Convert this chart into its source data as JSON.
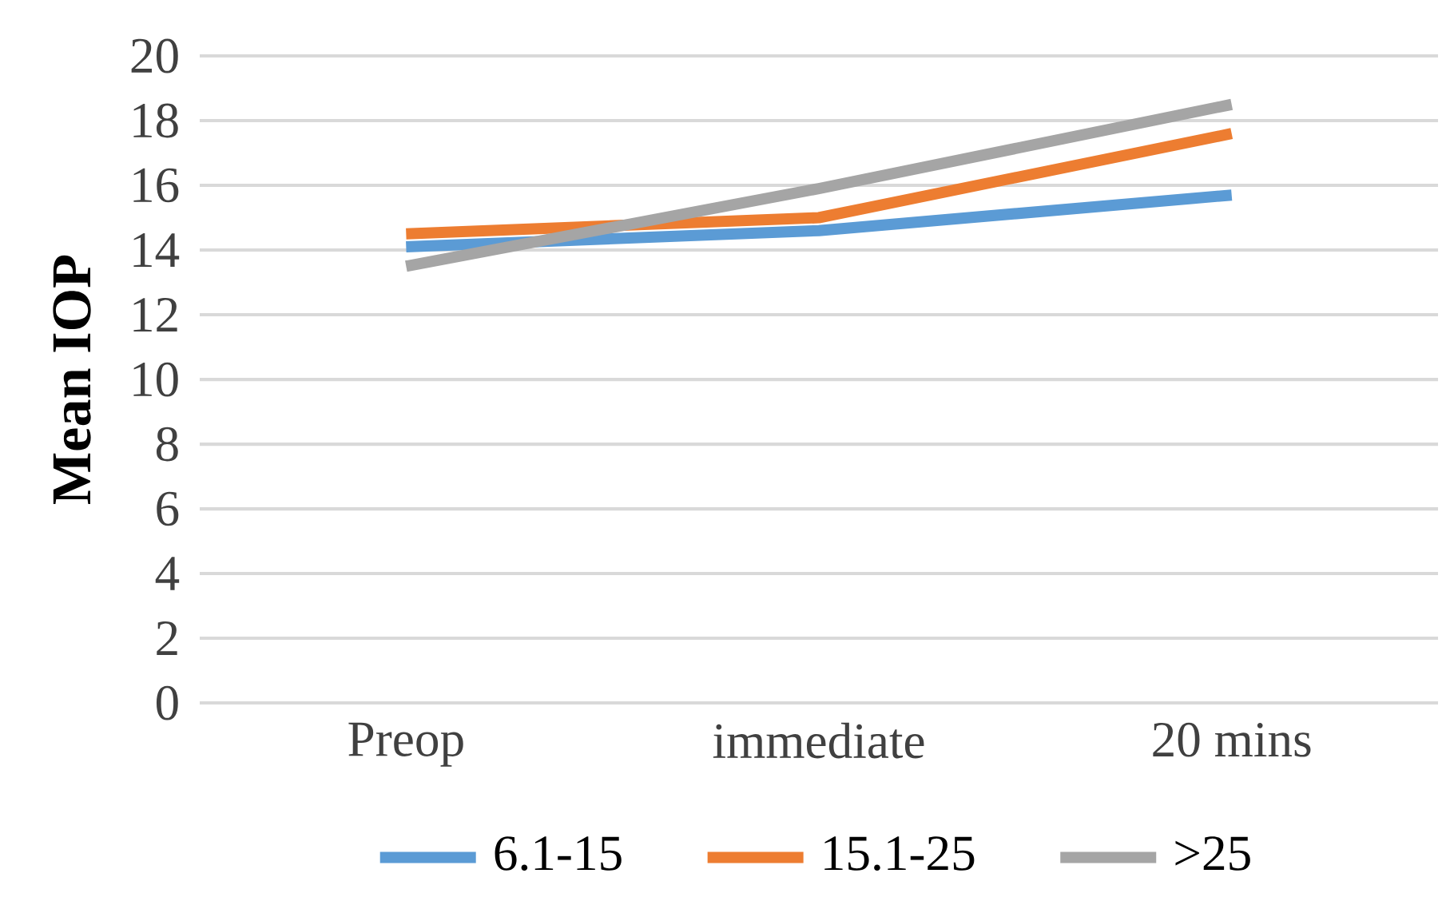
{
  "chart_data": {
    "type": "line",
    "ylabel": "Mean IOP",
    "categories": [
      "Preop",
      "immediate",
      "20 mins"
    ],
    "series": [
      {
        "name": "6.1-15",
        "color": "#5b9bd5",
        "values": [
          14.1,
          14.6,
          15.7
        ]
      },
      {
        "name": "15.1-25",
        "color": "#ed7d31",
        "values": [
          14.5,
          15.0,
          17.6
        ]
      },
      {
        "name": ">25",
        "color": "#a5a5a5",
        "values": [
          13.5,
          15.9,
          18.5
        ]
      }
    ],
    "ylim": [
      0,
      20
    ],
    "yticks": [
      0,
      2,
      4,
      6,
      8,
      10,
      12,
      14,
      16,
      18,
      20
    ],
    "grid": "y",
    "legend": "bottom",
    "marker": "none",
    "line_style": "solid"
  }
}
